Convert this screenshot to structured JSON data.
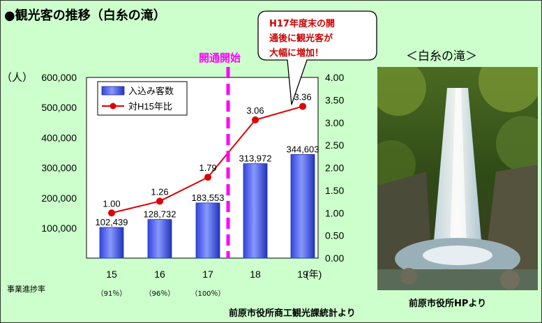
{
  "title": "●観光客の推移（白糸の滝）",
  "photo": {
    "title": "＜白糸の滝＞",
    "credit": "前原市役所HPより"
  },
  "source": "前原市役所商工観光課統計より",
  "progress": {
    "label": "事業進捗率",
    "values": [
      "（91％）",
      "（96％）",
      "（100％）"
    ]
  },
  "callout": {
    "lines": [
      "H17年度末の開",
      "通後に観光客が",
      "大幅に増加！"
    ],
    "color": "#cc0000"
  },
  "opening_marker": {
    "label": "開通開始",
    "color": "#ff00ff"
  },
  "colors": {
    "bar": "#5566ee",
    "line": "#dd0000",
    "background": "#ccffcc"
  },
  "chart_data": {
    "type": "bar",
    "categories": [
      "15",
      "16",
      "17",
      "18",
      "19"
    ],
    "xlabel": "(年)",
    "ylabel_left": "（人）",
    "series": [
      {
        "name": "入込み客数",
        "type": "bar",
        "axis": "left",
        "values": [
          102439,
          128732,
          183553,
          313972,
          344603
        ],
        "labels": [
          "102,439",
          "128,732",
          "183,553",
          "313,972",
          "344,603"
        ]
      },
      {
        "name": "対H15年比",
        "type": "line",
        "axis": "right",
        "values": [
          1.0,
          1.26,
          1.79,
          3.06,
          3.36
        ],
        "labels": [
          "1.00",
          "1.26",
          "1.79",
          "3.06",
          "3.36"
        ]
      }
    ],
    "left_axis": {
      "min": 100000,
      "max": 600000,
      "ticks": [
        "100,000",
        "200,000",
        "300,000",
        "400,000",
        "500,000",
        "600,000"
      ]
    },
    "right_axis": {
      "min": 0.0,
      "max": 4.0,
      "ticks": [
        "0.00",
        "0.50",
        "1.00",
        "1.50",
        "2.00",
        "2.50",
        "3.00",
        "3.50",
        "4.00"
      ]
    },
    "legend": "top-left",
    "grid": false
  }
}
